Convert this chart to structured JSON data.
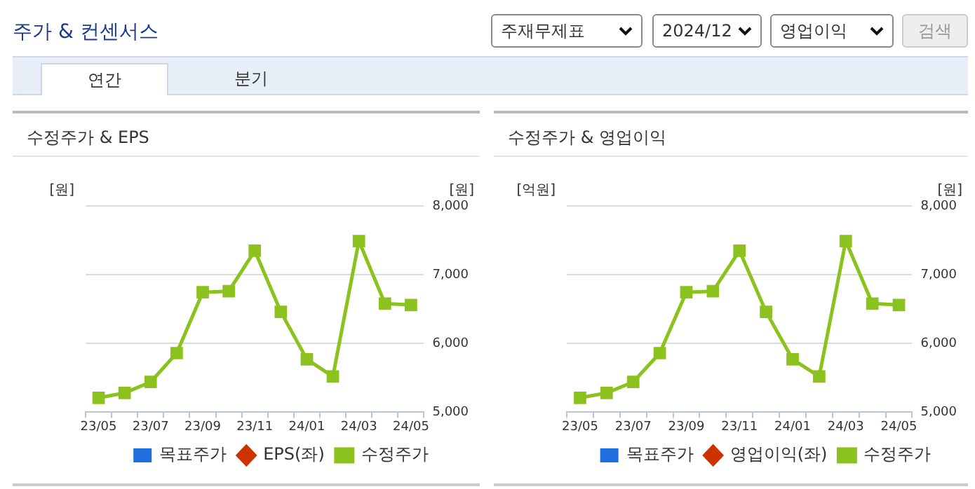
{
  "chart_data": [
    {
      "type": "other",
      "title": "주가 & 컨센서스",
      "annotations": [
        "주재무제표",
        "2024/12",
        "영업이익",
        "검색",
        "연간",
        "분기"
      ]
    },
    {
      "type": "line",
      "title": "수정주가 & EPS",
      "ylabel": "[원]",
      "y2label": "[원]",
      "categories": [
        "23/05",
        null,
        "23/07",
        null,
        "23/09",
        null,
        "23/11",
        null,
        "24/01",
        null,
        "24/03",
        null,
        "24/05"
      ],
      "series": [
        {
          "name": "목표주가",
          "type": "scatter",
          "marker": "square",
          "color": "#1f6fde",
          "values": [
            null,
            null,
            null,
            null,
            null,
            null,
            null,
            null,
            null,
            null,
            null,
            null,
            null
          ]
        },
        {
          "name": "EPS(좌)",
          "type": "line",
          "marker": "diamond",
          "color": "#cc3300",
          "values": [
            null,
            null,
            null,
            null,
            null,
            null,
            null,
            null,
            null,
            null,
            null,
            null,
            null
          ]
        },
        {
          "name": "수정주가",
          "type": "line",
          "marker": "square",
          "axis": "y2",
          "color": "#8cc21e",
          "values": [
            5210,
            5280,
            5440,
            5860,
            6745,
            6760,
            7350,
            6460,
            5770,
            5520,
            7490,
            6580,
            6560
          ]
        }
      ],
      "y2lim": [
        5000,
        8000
      ],
      "y2ticks": [
        {
          "value": 5000,
          "label": "5,000"
        },
        {
          "value": 6000,
          "label": "6,000"
        },
        {
          "value": 7000,
          "label": "7,000"
        },
        {
          "value": 8000,
          "label": "8,000"
        }
      ],
      "grid": "y",
      "legend": "bottom"
    },
    {
      "type": "line",
      "title": "수정주가 & 영업이익",
      "ylabel": "[억원]",
      "y2label": "[원]",
      "categories": [
        "23/05",
        null,
        "23/07",
        null,
        "23/09",
        null,
        "23/11",
        null,
        "24/01",
        null,
        "24/03",
        null,
        "24/05"
      ],
      "series": [
        {
          "name": "목표주가",
          "type": "scatter",
          "marker": "square",
          "color": "#1f6fde",
          "values": [
            null,
            null,
            null,
            null,
            null,
            null,
            null,
            null,
            null,
            null,
            null,
            null,
            null
          ]
        },
        {
          "name": "영업이익(좌)",
          "type": "line",
          "marker": "diamond",
          "color": "#cc3300",
          "values": [
            null,
            null,
            null,
            null,
            null,
            null,
            null,
            null,
            null,
            null,
            null,
            null,
            null
          ]
        },
        {
          "name": "수정주가",
          "type": "line",
          "marker": "square",
          "axis": "y2",
          "color": "#8cc21e",
          "values": [
            5210,
            5280,
            5440,
            5860,
            6745,
            6760,
            7350,
            6460,
            5770,
            5520,
            7490,
            6580,
            6560
          ]
        }
      ],
      "y2lim": [
        5000,
        8000
      ],
      "y2ticks": [
        {
          "value": 5000,
          "label": "5,000"
        },
        {
          "value": 6000,
          "label": "6,000"
        },
        {
          "value": 7000,
          "label": "7,000"
        },
        {
          "value": 8000,
          "label": "8,000"
        }
      ],
      "grid": "y",
      "legend": "bottom"
    }
  ]
}
